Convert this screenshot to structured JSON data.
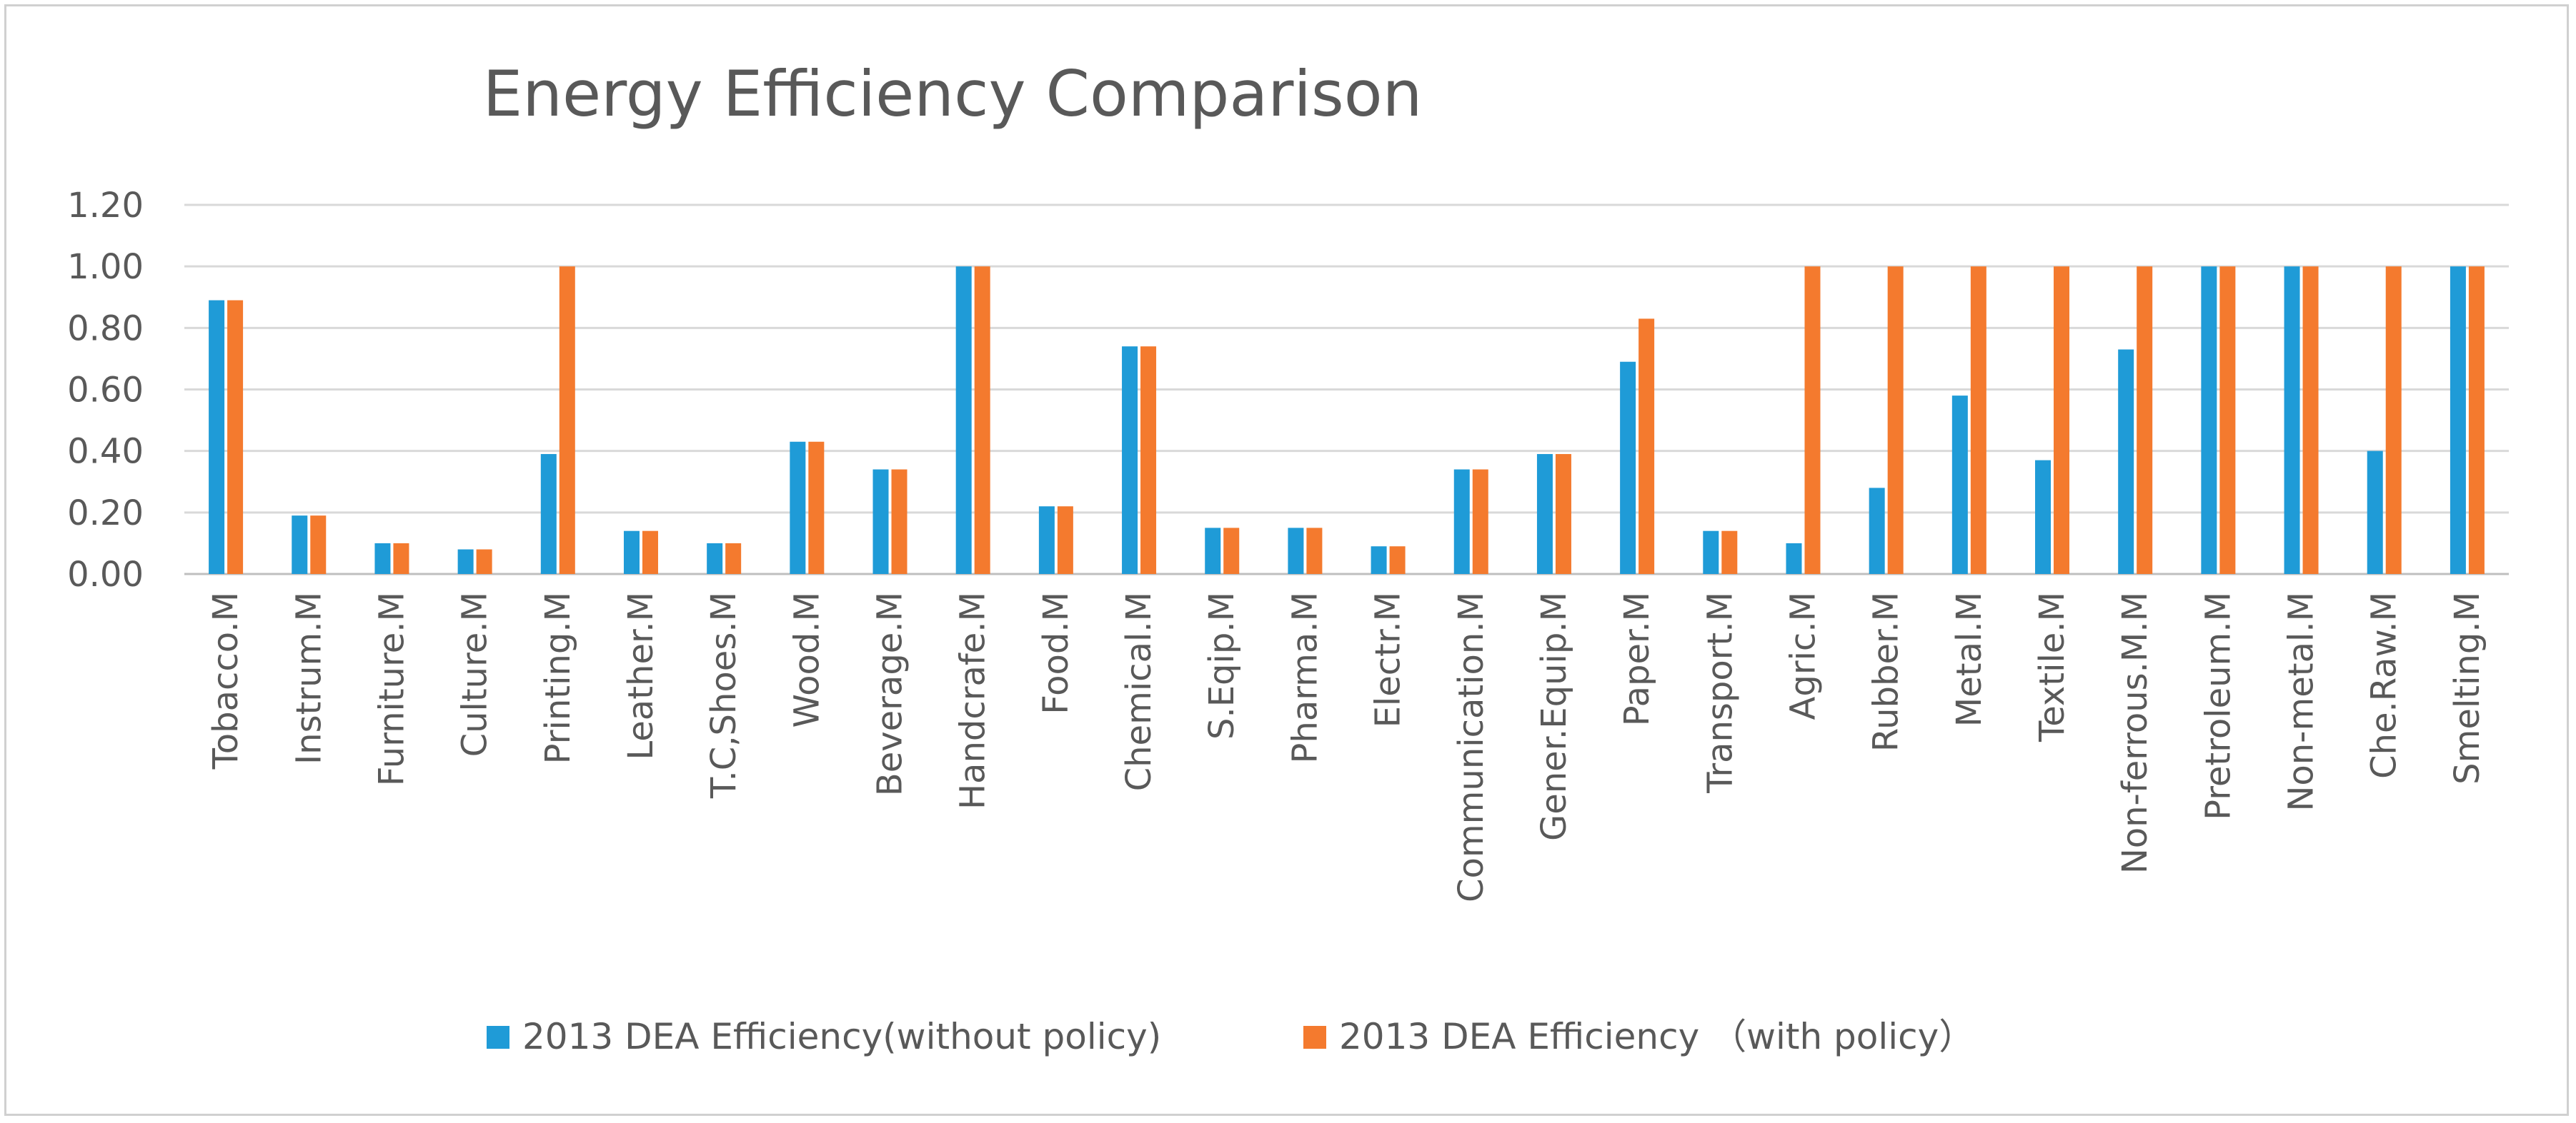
{
  "chart_data": {
    "type": "bar",
    "title": "Energy Efficiency Comparison",
    "xlabel": "",
    "ylabel": "",
    "ylim": [
      0,
      1.2
    ],
    "yticks": [
      "0.00",
      "0.20",
      "0.40",
      "0.60",
      "0.80",
      "1.00",
      "1.20"
    ],
    "grid": true,
    "legend_position": "bottom",
    "categories": [
      "Tobacco.M",
      "Instrum.M",
      "Furniture.M",
      "Culture.M",
      "Printing.M",
      "Leather.M",
      "T.C,Shoes.M",
      "Wood.M",
      "Beverage.M",
      "Handcrafe.M",
      "Food.M",
      "Chemical.M",
      "S.Eqip.M",
      "Pharma.M",
      "Electr.M",
      "Communication.M",
      "Gener.Equip.M",
      "Paper.M",
      "Transport.M",
      "Agric.M",
      "Rubber.M",
      "Metal.M",
      "Textile.M",
      "Non-ferrous.M.M",
      "Pretroleum.M",
      "Non-metal.M",
      "Che.Raw.M",
      "Smelting.M"
    ],
    "series": [
      {
        "name": "2013 DEA Efficiency(without policy)",
        "color": "#1f9bd7",
        "values": [
          0.89,
          0.19,
          0.1,
          0.08,
          0.39,
          0.14,
          0.1,
          0.43,
          0.34,
          1.0,
          0.22,
          0.74,
          0.15,
          0.15,
          0.09,
          0.34,
          0.39,
          0.69,
          0.14,
          0.1,
          0.28,
          0.58,
          0.37,
          0.73,
          1.0,
          1.0,
          0.4,
          1.0
        ]
      },
      {
        "name": "2013 DEA Efficiency （with policy）",
        "color": "#f47a2e",
        "values": [
          0.89,
          0.19,
          0.1,
          0.08,
          1.0,
          0.14,
          0.1,
          0.43,
          0.34,
          1.0,
          0.22,
          0.74,
          0.15,
          0.15,
          0.09,
          0.34,
          0.39,
          0.83,
          0.14,
          1.0,
          1.0,
          1.0,
          1.0,
          1.0,
          1.0,
          1.0,
          1.0,
          1.0
        ]
      }
    ]
  }
}
